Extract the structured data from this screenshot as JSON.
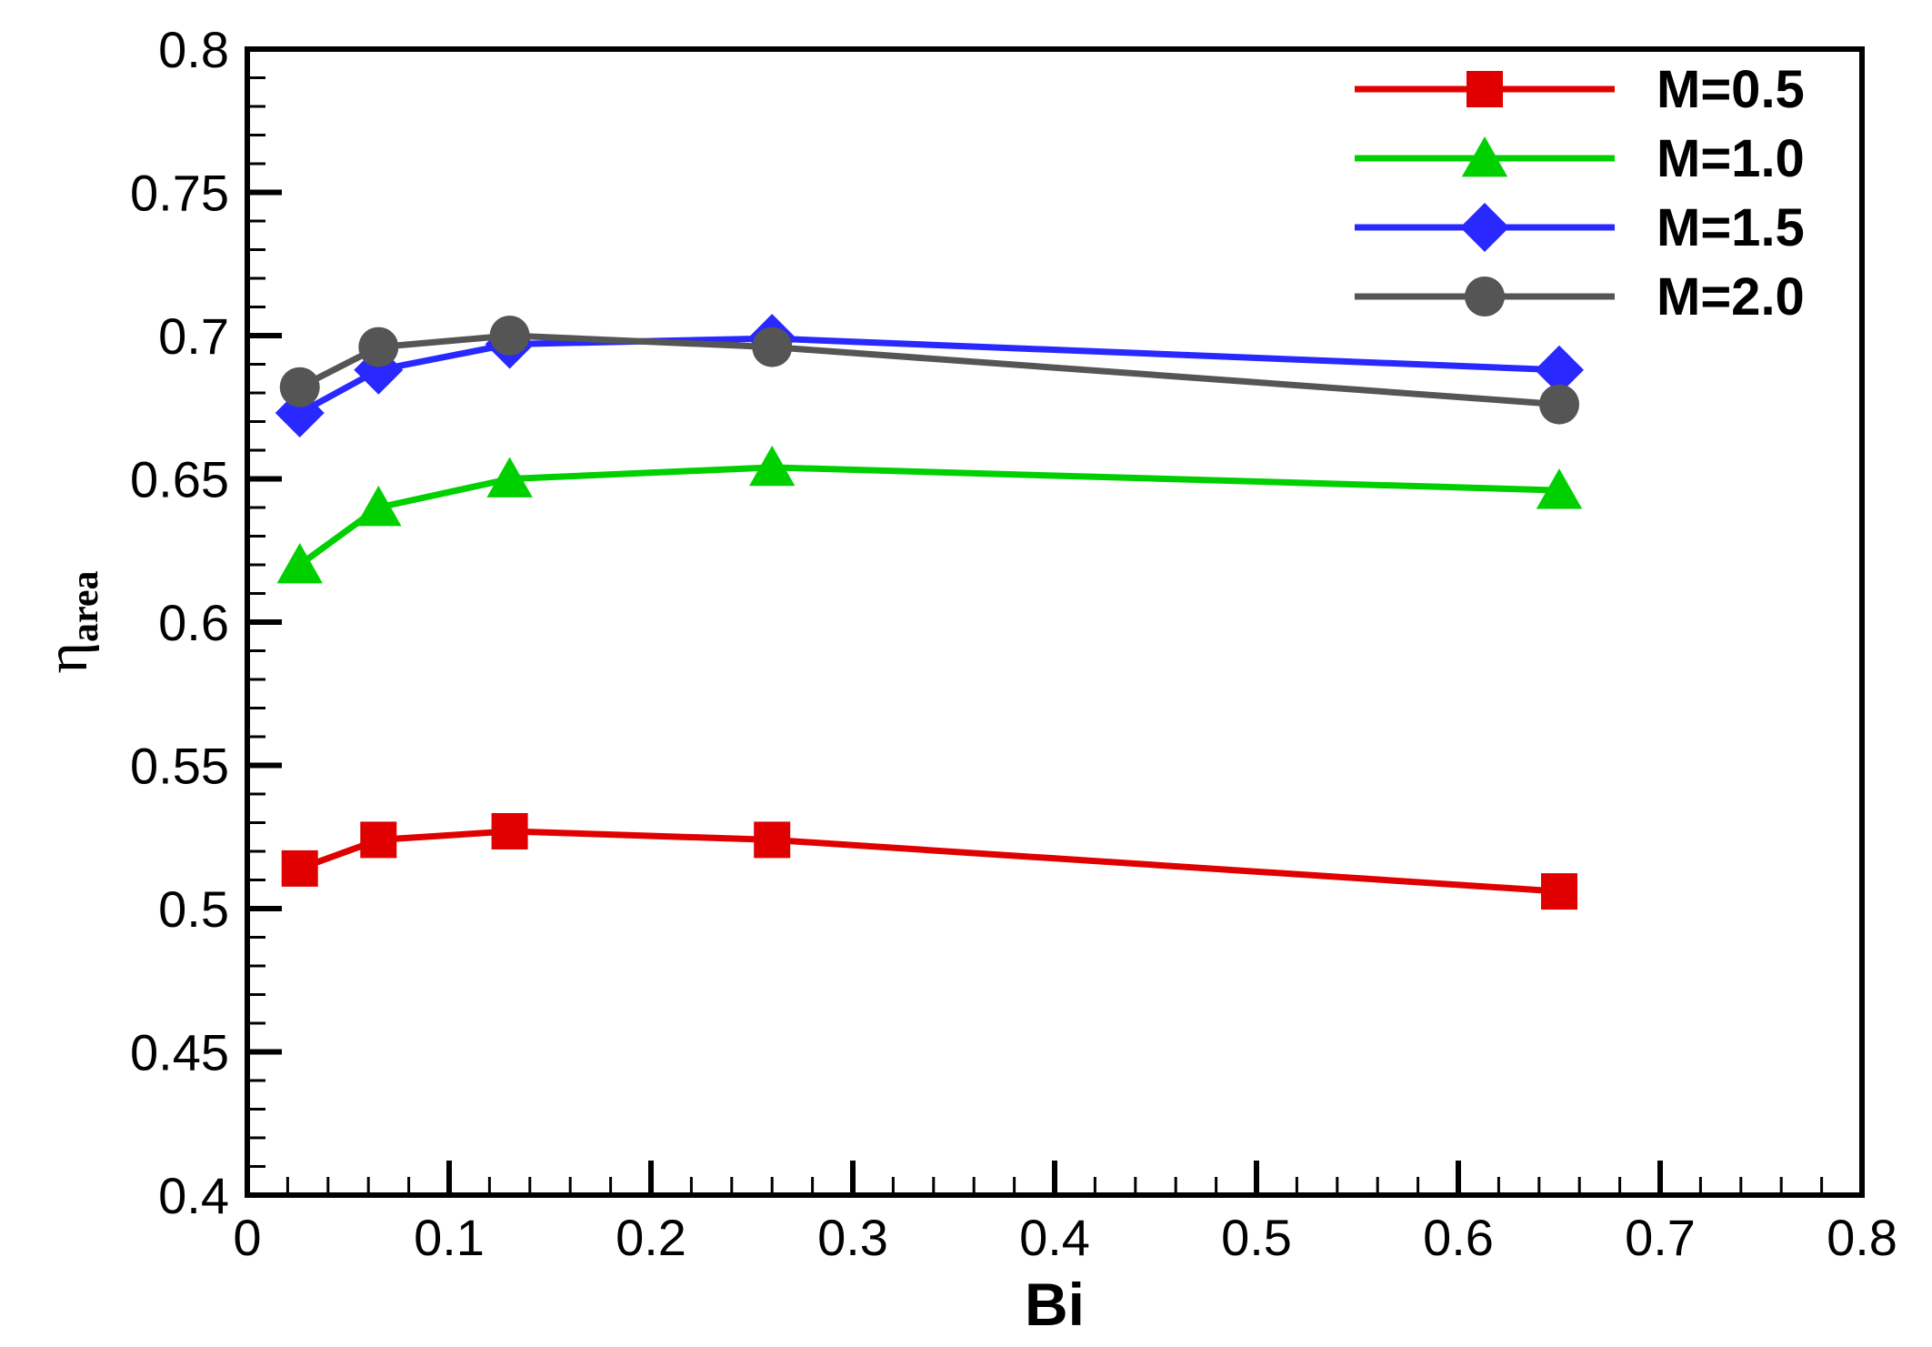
{
  "chart_data": {
    "type": "line",
    "title": "",
    "xlabel": "Bi",
    "ylabel": {
      "symbol": "η",
      "subscript": "area"
    },
    "xlim": [
      0,
      0.8
    ],
    "ylim": [
      0.4,
      0.8
    ],
    "x_ticks": [
      "0",
      "0.1",
      "0.2",
      "0.3",
      "0.4",
      "0.5",
      "0.6",
      "0.7",
      "0.8"
    ],
    "y_ticks": [
      "0.4",
      "0.45",
      "0.5",
      "0.55",
      "0.6",
      "0.65",
      "0.7",
      "0.75",
      "0.8"
    ],
    "x_tick_values": [
      0,
      0.1,
      0.2,
      0.3,
      0.4,
      0.5,
      0.6,
      0.7,
      0.8
    ],
    "y_tick_values": [
      0.4,
      0.45,
      0.5,
      0.55,
      0.6,
      0.65,
      0.7,
      0.75,
      0.8
    ],
    "grid": false,
    "legend_position": "top-right",
    "series": [
      {
        "name": "M=0.5",
        "color": "#e00000",
        "marker": "square",
        "x": [
          0.026,
          0.065,
          0.13,
          0.26,
          0.65
        ],
        "y": [
          0.514,
          0.524,
          0.527,
          0.524,
          0.506
        ]
      },
      {
        "name": "M=1.0",
        "color": "#00d000",
        "marker": "triangle",
        "x": [
          0.026,
          0.065,
          0.13,
          0.26,
          0.65
        ],
        "y": [
          0.62,
          0.64,
          0.65,
          0.654,
          0.646
        ]
      },
      {
        "name": "M=1.5",
        "color": "#2828ff",
        "marker": "diamond",
        "x": [
          0.026,
          0.065,
          0.13,
          0.26,
          0.65
        ],
        "y": [
          0.673,
          0.688,
          0.697,
          0.699,
          0.688
        ]
      },
      {
        "name": "M=2.0",
        "color": "#555555",
        "marker": "circle",
        "x": [
          0.026,
          0.065,
          0.13,
          0.26,
          0.65
        ],
        "y": [
          0.682,
          0.696,
          0.7,
          0.696,
          0.676
        ]
      }
    ]
  }
}
